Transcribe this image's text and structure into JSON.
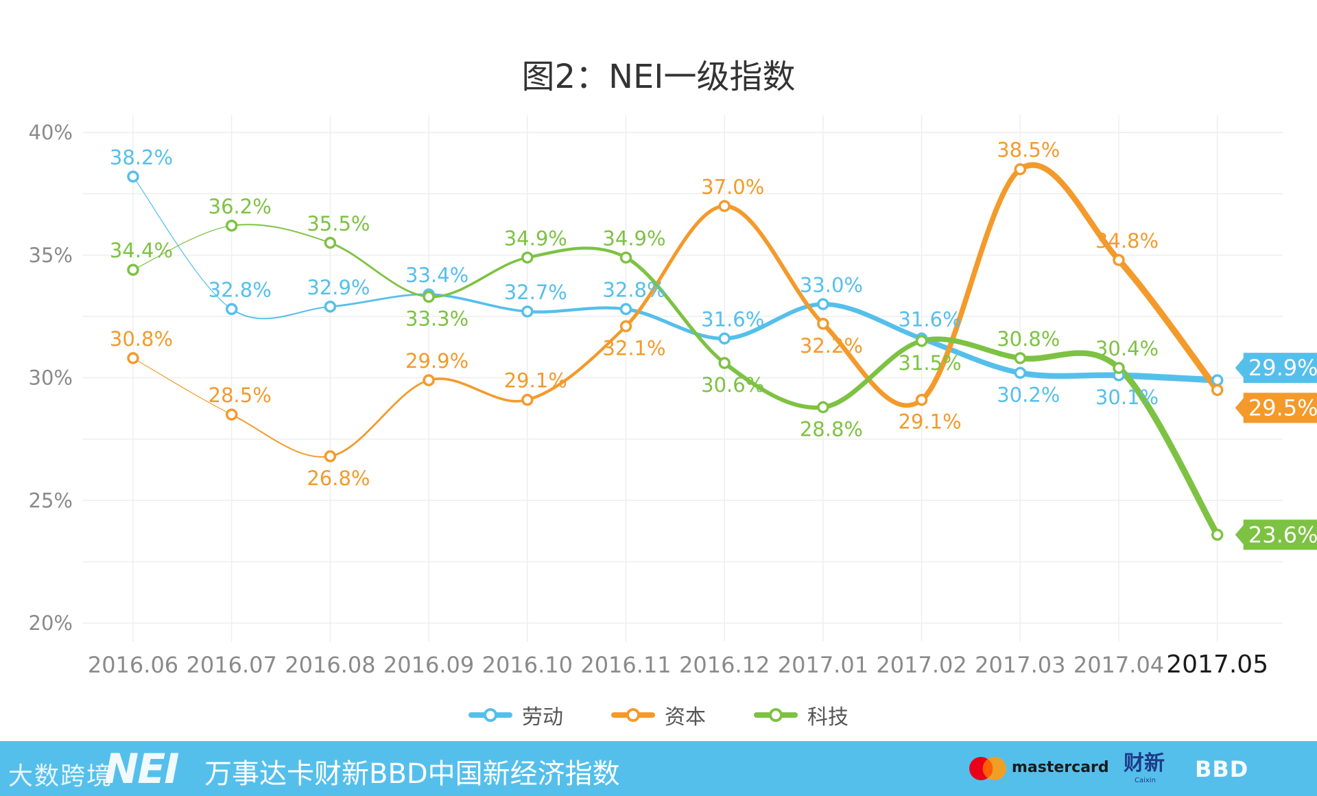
{
  "chart_data": {
    "type": "line",
    "title": "图2：NEI一级指数",
    "categories": [
      "2016.06",
      "2016.07",
      "2016.08",
      "2016.09",
      "2016.10",
      "2016.11",
      "2016.12",
      "2017.01",
      "2017.02",
      "2017.03",
      "2017.04",
      "2017.05"
    ],
    "ylim": [
      20,
      40
    ],
    "yticks": [
      20,
      25,
      30,
      35,
      40
    ],
    "ytick_labels": [
      "20%",
      "25%",
      "30%",
      "35%",
      "40%"
    ],
    "series": [
      {
        "name": "劳动",
        "color": "#55bfeb",
        "values": [
          38.2,
          32.8,
          32.9,
          33.4,
          32.7,
          32.8,
          31.6,
          33.0,
          31.6,
          30.2,
          30.1,
          29.9
        ],
        "labels": [
          "38.2%",
          "32.8%",
          "32.9%",
          "33.4%",
          "32.7%",
          "32.8%",
          "31.6%",
          "33.0%",
          "31.6%",
          "30.2%",
          "30.1%",
          "29.9%"
        ]
      },
      {
        "name": "资本",
        "color": "#f39a2b",
        "values": [
          30.8,
          28.5,
          26.8,
          29.9,
          29.1,
          32.1,
          37.0,
          32.2,
          29.1,
          38.5,
          34.8,
          29.5
        ],
        "labels": [
          "30.8%",
          "28.5%",
          "26.8%",
          "29.9%",
          "29.1%",
          "32.1%",
          "37.0%",
          "32.2%",
          "29.1%",
          "38.5%",
          "34.8%",
          "29.5%"
        ]
      },
      {
        "name": "科技",
        "color": "#7dc242",
        "values": [
          34.4,
          36.2,
          35.5,
          33.3,
          34.9,
          34.9,
          30.6,
          28.8,
          31.5,
          30.8,
          30.4,
          23.6
        ],
        "labels": [
          "34.4%",
          "36.2%",
          "35.5%",
          "33.3%",
          "34.9%",
          "34.9%",
          "30.6%",
          "28.8%",
          "31.5%",
          "30.8%",
          "30.4%",
          "23.6%"
        ]
      }
    ],
    "legend": [
      "劳动",
      "资本",
      "科技"
    ],
    "legend_position": "bottom"
  },
  "footer": {
    "title": "万事达卡财新BBD中国新经济指数",
    "nei_logo": "NEI",
    "watermark": "大数跨境",
    "mastercard": "mastercard",
    "caixin": "财新",
    "caixin_sub": "Caixin",
    "bbd": "BBD"
  }
}
